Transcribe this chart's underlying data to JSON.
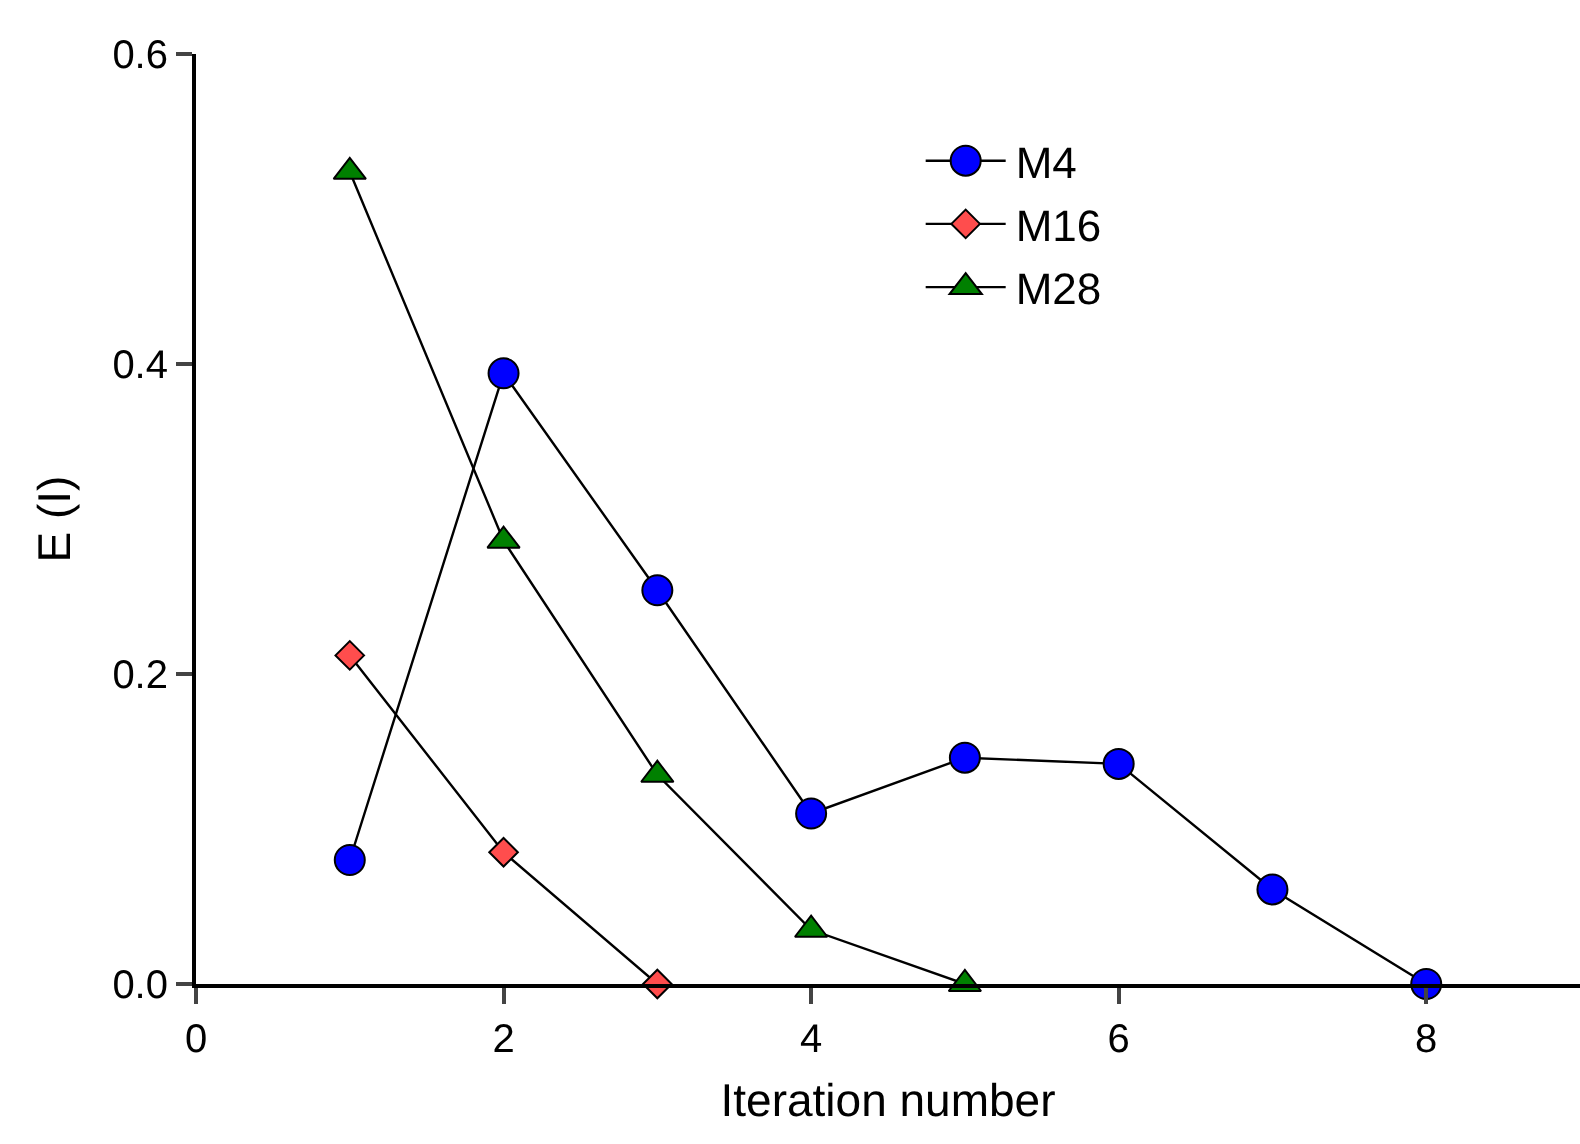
{
  "chart_data": {
    "type": "line",
    "xlabel": "Iteration number",
    "ylabel": "E (I)",
    "xlim": [
      0,
      9
    ],
    "xticks": [
      0,
      2,
      4,
      6,
      8
    ],
    "ylim": [
      0,
      0.6
    ],
    "yticks": [
      {
        "value": 0,
        "label": "0.0"
      },
      0.2,
      0.4,
      0.6
    ],
    "grid": false,
    "legend": "top right",
    "line_style": "solid",
    "series": [
      {
        "name": "M4",
        "color": "#0000ff",
        "marker": "circle",
        "x": [
          1,
          2,
          3,
          4,
          5,
          6,
          7,
          8
        ],
        "values": [
          0.08,
          0.394,
          0.254,
          0.11,
          0.146,
          0.142,
          0.061,
          0
        ]
      },
      {
        "name": "M16",
        "color": "#ff4d4d",
        "marker": "diamond",
        "x": [
          1,
          2,
          3
        ],
        "values": [
          0.212,
          0.085,
          0
        ]
      },
      {
        "name": "M28",
        "color": "#008000",
        "marker": "triangle",
        "x": [
          1,
          2,
          3,
          4,
          5
        ],
        "values": [
          0.524,
          0.286,
          0.135,
          0.035,
          0
        ]
      }
    ]
  }
}
